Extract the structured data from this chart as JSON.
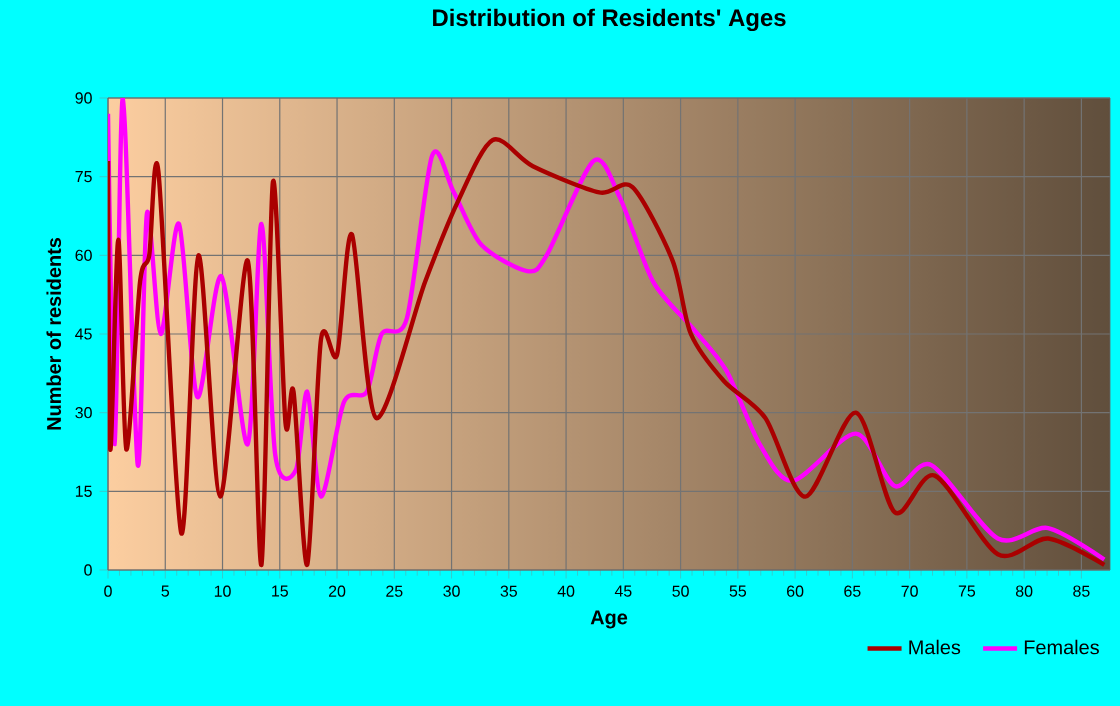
{
  "chart_data": {
    "type": "line",
    "title": "Distribution of Residents' Ages",
    "xlabel": "Age",
    "ylabel": "Number of residents",
    "xlim": [
      0,
      87.5
    ],
    "ylim": [
      0,
      90
    ],
    "xticks": [
      0,
      5,
      10,
      15,
      20,
      25,
      30,
      35,
      40,
      45,
      50,
      55,
      60,
      65,
      70,
      75,
      80,
      85
    ],
    "yticks": [
      0,
      15,
      30,
      45,
      60,
      75,
      90
    ],
    "grid": true,
    "legend": "bottom right",
    "marker": "none",
    "line_style": "solid",
    "series": [
      {
        "name": "Males",
        "color": "#aa0000",
        "x": [
          0,
          0.2,
          0.9,
          1.6,
          2.8,
          3.6,
          4.4,
          6.4,
          7.9,
          9.8,
          12.2,
          13.4,
          14.4,
          15.5,
          16.2,
          17.4,
          18.6,
          20,
          21.3,
          23.4,
          27.7,
          30.5,
          33.6,
          37.1,
          42.9,
          45.8,
          49.3,
          50.9,
          53.8,
          57.4,
          60.9,
          65.3,
          68.7,
          72.2,
          77.7,
          82.1,
          87
        ],
        "values": [
          78,
          23,
          63,
          23,
          55,
          60,
          76,
          7,
          60,
          14,
          59,
          1,
          74,
          28,
          34,
          1,
          44,
          41,
          64,
          29,
          55,
          70,
          82,
          77,
          72,
          73,
          59,
          45,
          36,
          29,
          14,
          30,
          11,
          18,
          3,
          6,
          1
        ]
      },
      {
        "name": "Females",
        "color": "#ff00ff",
        "x": [
          0,
          0.6,
          1.3,
          2.6,
          3.4,
          4.6,
          6.2,
          7.8,
          9.9,
          12.2,
          13.4,
          14.6,
          16.4,
          17.4,
          18.6,
          20.6,
          22.6,
          23.9,
          26.1,
          28.3,
          30.2,
          32.6,
          36.6,
          38.3,
          42.4,
          44.7,
          47.6,
          51.1,
          54,
          56.9,
          59.8,
          65.3,
          68.7,
          71.9,
          77.7,
          82.1,
          87
        ],
        "values": [
          87,
          24,
          90,
          20,
          68,
          45,
          66,
          33,
          56,
          24,
          66,
          22,
          19,
          34,
          14,
          32,
          34,
          45,
          48,
          79,
          72,
          62,
          57,
          60,
          78,
          71,
          55,
          46,
          38,
          24,
          17,
          26,
          16,
          20,
          6,
          8,
          2
        ]
      }
    ]
  }
}
